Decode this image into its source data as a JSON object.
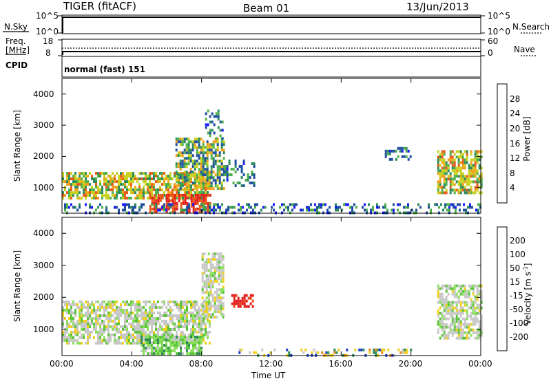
{
  "header": {
    "radar": "TIGER (fitACF)",
    "beam": "Beam 01",
    "date": "13/Jun/2013"
  },
  "top_panels": {
    "nsky_label": "N.Sky",
    "nsearch_label": "N.Search",
    "nsky_ticks": [
      "10^5",
      "10^0"
    ],
    "nsearch_ticks": [
      "10^5",
      "10^0"
    ],
    "freq_label_1": "Freq.",
    "freq_label_2": "[MHz]",
    "freq_ticks": [
      "18",
      "8"
    ],
    "nave_label": "Nave",
    "nave_ticks": [
      "60",
      "0"
    ],
    "cpid_label": "CPID",
    "cpid_value": "normal (fast) 151"
  },
  "chart_data": [
    {
      "type": "heatmap",
      "name": "power",
      "ylabel": "Slant Range [km]",
      "xlabel": "Time UT",
      "x_ticks": [
        "00:00",
        "04:00",
        "08:00",
        "12:00",
        "16:00",
        "20:00",
        "00:00"
      ],
      "xlim_hours": [
        0,
        24
      ],
      "ylim_km": [
        180,
        4500
      ],
      "y_ticks": [
        1000,
        2000,
        3000,
        4000
      ],
      "colorbar": {
        "label": "Power [dB]",
        "ticks": [
          4,
          8,
          12,
          16,
          20,
          24,
          28
        ],
        "colors": [
          "#1a1aff",
          "#1f4fa0",
          "#2c8c5a",
          "#4fb04a",
          "#c8d21e",
          "#f0a018",
          "#e85a18",
          "#e41e1e"
        ]
      },
      "regions": [
        {
          "t": [
            0.0,
            8.5
          ],
          "r": [
            700,
            1500
          ],
          "level": "high"
        },
        {
          "t": [
            5.0,
            8.5
          ],
          "r": [
            250,
            800
          ],
          "level": "very_high"
        },
        {
          "t": [
            6.5,
            9.3
          ],
          "r": [
            1000,
            2600
          ],
          "level": "medium"
        },
        {
          "t": [
            8.2,
            9.2
          ],
          "r": [
            2600,
            3500
          ],
          "level": "low"
        },
        {
          "t": [
            9.3,
            11.0
          ],
          "r": [
            1100,
            1900
          ],
          "level": "low"
        },
        {
          "t": [
            0.0,
            24.0
          ],
          "r": [
            200,
            500
          ],
          "level": "low"
        },
        {
          "t": [
            21.5,
            24.0
          ],
          "r": [
            800,
            2200
          ],
          "level": "high"
        },
        {
          "t": [
            18.5,
            20.0
          ],
          "r": [
            1900,
            2300
          ],
          "level": "low"
        }
      ]
    },
    {
      "type": "heatmap",
      "name": "velocity",
      "ylabel": "Slant Range [km]",
      "xlabel": "Time UT",
      "x_ticks": [
        "00:00",
        "04:00",
        "08:00",
        "12:00",
        "16:00",
        "20:00",
        "00:00"
      ],
      "xlim_hours": [
        0,
        24
      ],
      "ylim_km": [
        180,
        4500
      ],
      "y_ticks": [
        1000,
        2000,
        3000,
        4000
      ],
      "colorbar": {
        "label": "Velocity [m s-1]",
        "ticks": [
          "200",
          "100",
          "50",
          "15",
          "-15",
          "-50",
          "-100",
          "-200"
        ],
        "colors": [
          "#1c3cc8",
          "#2e8a56",
          "#5cc43c",
          "#8ae05a",
          "#c8c8c8",
          "#f0d01e",
          "#f08a18",
          "#e84a18",
          "#e41e1e"
        ]
      },
      "regions": [
        {
          "t": [
            0.0,
            8.5
          ],
          "r": [
            600,
            1900
          ],
          "level": "grey"
        },
        {
          "t": [
            4.5,
            8.0
          ],
          "r": [
            200,
            800
          ],
          "level": "green"
        },
        {
          "t": [
            8.0,
            9.3
          ],
          "r": [
            1400,
            3400
          ],
          "level": "grey"
        },
        {
          "t": [
            9.7,
            11.0
          ],
          "r": [
            1700,
            2100
          ],
          "level": "red"
        },
        {
          "t": [
            10.0,
            20.0
          ],
          "r": [
            200,
            400
          ],
          "level": "yellow"
        },
        {
          "t": [
            21.5,
            24.0
          ],
          "r": [
            700,
            2400
          ],
          "level": "grey"
        }
      ]
    }
  ]
}
